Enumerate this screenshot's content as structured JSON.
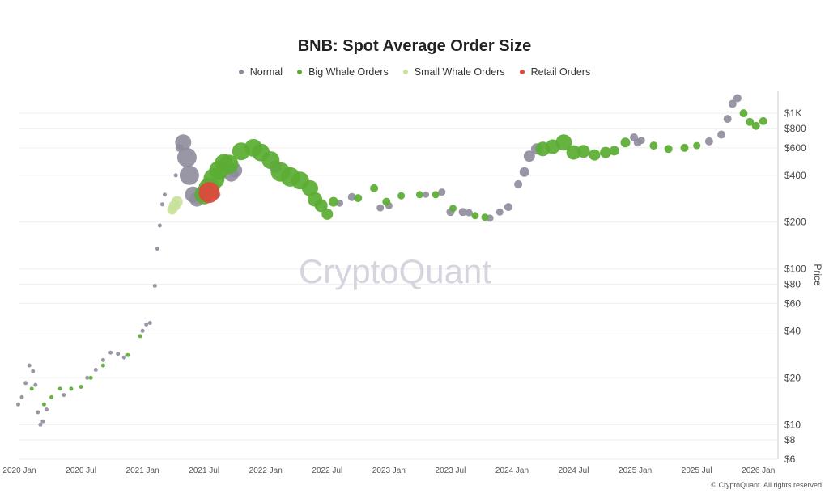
{
  "chart_data": {
    "type": "scatter",
    "title": "BNB: Spot Average Order Size",
    "ylabel": "Price",
    "xlabel": "",
    "yscale": "log",
    "ylim": [
      6,
      1400
    ],
    "xlim": [
      2020.0,
      2026.12
    ],
    "y_ticks": [
      {
        "v": 1000,
        "label": "$1K"
      },
      {
        "v": 800,
        "label": "$800"
      },
      {
        "v": 600,
        "label": "$600"
      },
      {
        "v": 400,
        "label": "$400"
      },
      {
        "v": 200,
        "label": "$200"
      },
      {
        "v": 100,
        "label": "$100"
      },
      {
        "v": 80,
        "label": "$80"
      },
      {
        "v": 60,
        "label": "$60"
      },
      {
        "v": 40,
        "label": "$40"
      },
      {
        "v": 20,
        "label": "$20"
      },
      {
        "v": 10,
        "label": "$10"
      },
      {
        "v": 8,
        "label": "$8"
      },
      {
        "v": 6,
        "label": "$6"
      }
    ],
    "x_ticks": [
      {
        "v": 2020.0,
        "label": "2020 Jan"
      },
      {
        "v": 2020.5,
        "label": "2020 Jul"
      },
      {
        "v": 2021.0,
        "label": "2021 Jan"
      },
      {
        "v": 2021.5,
        "label": "2021 Jul"
      },
      {
        "v": 2022.0,
        "label": "2022 Jan"
      },
      {
        "v": 2022.5,
        "label": "2022 Jul"
      },
      {
        "v": 2023.0,
        "label": "2023 Jan"
      },
      {
        "v": 2023.5,
        "label": "2023 Jul"
      },
      {
        "v": 2024.0,
        "label": "2024 Jan"
      },
      {
        "v": 2024.5,
        "label": "2024 Jul"
      },
      {
        "v": 2025.0,
        "label": "2025 Jan"
      },
      {
        "v": 2025.5,
        "label": "2025 Jul"
      },
      {
        "v": 2026.0,
        "label": "2026 Jan"
      }
    ],
    "legend": [
      {
        "name": "Normal",
        "color": "#8e8c9c"
      },
      {
        "name": "Big Whale Orders",
        "color": "#5aad32"
      },
      {
        "name": "Small Whale Orders",
        "color": "#c9e29a"
      },
      {
        "name": "Retail Orders",
        "color": "#e0473c"
      }
    ],
    "series": [
      {
        "name": "Normal",
        "points": [
          [
            2019.99,
            13.5
          ],
          [
            2020.02,
            15
          ],
          [
            2020.05,
            18.5
          ],
          [
            2020.08,
            24
          ],
          [
            2020.11,
            22
          ],
          [
            2020.13,
            18
          ],
          [
            2020.15,
            12
          ],
          [
            2020.17,
            10
          ],
          [
            2020.19,
            10.5
          ],
          [
            2020.22,
            12.5
          ],
          [
            2020.36,
            15.5
          ],
          [
            2020.55,
            20
          ],
          [
            2020.62,
            22.5
          ],
          [
            2020.68,
            26
          ],
          [
            2020.74,
            29
          ],
          [
            2020.8,
            28.5
          ],
          [
            2020.85,
            27
          ],
          [
            2021.0,
            40
          ],
          [
            2021.03,
            44
          ],
          [
            2021.06,
            45
          ],
          [
            2021.1,
            78
          ],
          [
            2021.12,
            135
          ],
          [
            2021.14,
            190
          ],
          [
            2021.16,
            260
          ],
          [
            2021.18,
            300
          ],
          [
            2021.27,
            400
          ],
          [
            2021.3,
            600
          ],
          [
            2021.33,
            650
          ],
          [
            2021.36,
            520
          ],
          [
            2021.38,
            400
          ],
          [
            2021.41,
            300
          ],
          [
            2021.44,
            280
          ],
          [
            2021.5,
            295
          ],
          [
            2021.6,
            300
          ],
          [
            2021.72,
            405
          ],
          [
            2021.75,
            430
          ],
          [
            2022.08,
            455
          ],
          [
            2022.6,
            265
          ],
          [
            2022.7,
            290
          ],
          [
            2022.93,
            247
          ],
          [
            2023.0,
            255
          ],
          [
            2023.3,
            300
          ],
          [
            2023.43,
            312
          ],
          [
            2023.5,
            232
          ],
          [
            2023.6,
            232
          ],
          [
            2023.65,
            230
          ],
          [
            2023.82,
            212
          ],
          [
            2023.9,
            232
          ],
          [
            2023.97,
            250
          ],
          [
            2024.05,
            350
          ],
          [
            2024.1,
            420
          ],
          [
            2024.14,
            530
          ],
          [
            2024.2,
            590
          ],
          [
            2024.99,
            700
          ],
          [
            2025.02,
            650
          ],
          [
            2025.05,
            670
          ],
          [
            2025.6,
            660
          ],
          [
            2025.7,
            730
          ],
          [
            2025.75,
            920
          ],
          [
            2025.79,
            1150
          ],
          [
            2025.83,
            1250
          ]
        ],
        "sizes": [
          2.5,
          2.5,
          2.5,
          2.5,
          2.5,
          2.5,
          2.5,
          2.5,
          2.5,
          2.5,
          2.5,
          2.5,
          2.5,
          2.5,
          2.5,
          2.5,
          2.5,
          2.5,
          2.5,
          2.5,
          2.5,
          2.5,
          2.5,
          2.5,
          2.5,
          2.5,
          5,
          10,
          12,
          12,
          10,
          9,
          7,
          5,
          9,
          9,
          8,
          4.5,
          5,
          4.5,
          4.5,
          4,
          4.5,
          5,
          5,
          4.5,
          4.5,
          4.5,
          5,
          5,
          6,
          7,
          7,
          5,
          5,
          4.5,
          5,
          5,
          5,
          5,
          5
        ]
      },
      {
        "name": "Big Whale Orders",
        "points": [
          [
            2020.1,
            17
          ],
          [
            2020.2,
            13.5
          ],
          [
            2020.26,
            15
          ],
          [
            2020.33,
            17
          ],
          [
            2020.42,
            17
          ],
          [
            2020.5,
            17.5
          ],
          [
            2020.58,
            20
          ],
          [
            2020.68,
            24
          ],
          [
            2020.88,
            28
          ],
          [
            2020.98,
            37
          ],
          [
            2021.5,
            300
          ],
          [
            2021.54,
            330
          ],
          [
            2021.58,
            380
          ],
          [
            2021.62,
            430
          ],
          [
            2021.66,
            480
          ],
          [
            2021.7,
            470
          ],
          [
            2021.8,
            570
          ],
          [
            2021.9,
            600
          ],
          [
            2021.96,
            560
          ],
          [
            2022.04,
            500
          ],
          [
            2022.12,
            420
          ],
          [
            2022.2,
            390
          ],
          [
            2022.28,
            370
          ],
          [
            2022.36,
            330
          ],
          [
            2022.4,
            280
          ],
          [
            2022.45,
            255
          ],
          [
            2022.5,
            225
          ],
          [
            2022.55,
            270
          ],
          [
            2022.75,
            285
          ],
          [
            2022.88,
            330
          ],
          [
            2022.98,
            270
          ],
          [
            2023.1,
            295
          ],
          [
            2023.25,
            300
          ],
          [
            2023.38,
            300
          ],
          [
            2023.52,
            245
          ],
          [
            2023.7,
            220
          ],
          [
            2023.78,
            215
          ],
          [
            2024.25,
            590
          ],
          [
            2024.33,
            610
          ],
          [
            2024.42,
            650
          ],
          [
            2024.5,
            560
          ],
          [
            2024.58,
            570
          ],
          [
            2024.67,
            540
          ],
          [
            2024.76,
            560
          ],
          [
            2024.83,
            575
          ],
          [
            2024.92,
            650
          ],
          [
            2025.15,
            620
          ],
          [
            2025.27,
            590
          ],
          [
            2025.4,
            600
          ],
          [
            2025.5,
            620
          ],
          [
            2025.88,
            1000
          ],
          [
            2025.93,
            880
          ],
          [
            2025.98,
            830
          ],
          [
            2026.04,
            890
          ]
        ],
        "sizes": [
          2.5,
          2.5,
          2.5,
          2.5,
          2.5,
          2.5,
          2.5,
          2.5,
          2.5,
          2.5,
          12,
          13,
          13,
          12,
          11,
          12,
          11,
          11,
          11,
          11,
          12,
          12,
          11,
          10,
          9,
          8,
          7,
          6,
          5,
          5,
          5,
          4.5,
          4.5,
          4.5,
          4.5,
          4.5,
          4.5,
          9,
          9,
          10,
          9,
          8,
          7,
          7,
          6,
          6,
          5,
          5,
          5,
          4.5,
          5,
          5,
          5,
          5
        ]
      },
      {
        "name": "Small Whale Orders",
        "points": [
          [
            2021.24,
            240
          ],
          [
            2021.26,
            255
          ],
          [
            2021.28,
            270
          ]
        ],
        "sizes": [
          6,
          7,
          7
        ]
      },
      {
        "name": "Retail Orders",
        "points": [
          [
            2021.54,
            310
          ]
        ],
        "sizes": [
          13
        ]
      }
    ]
  },
  "watermark": "CryptoQuant",
  "copyright": "© CryptoQuant. All rights reserved"
}
